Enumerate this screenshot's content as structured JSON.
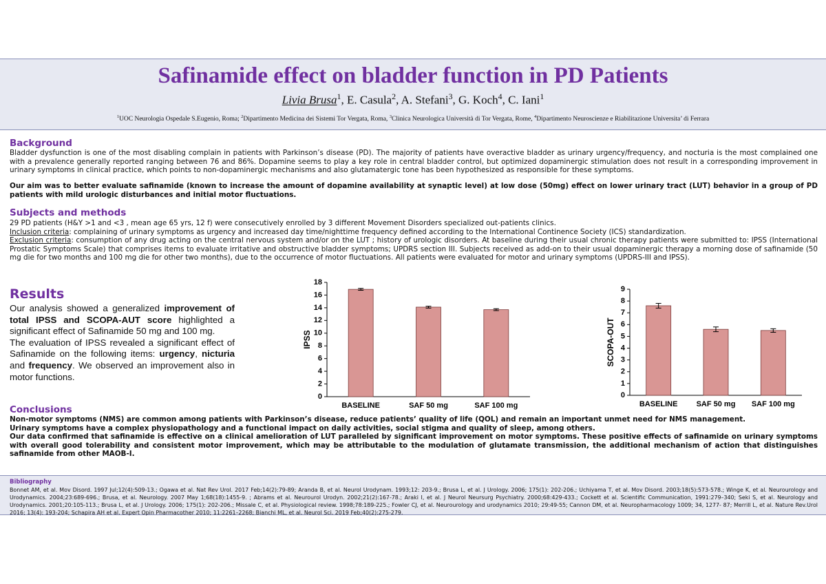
{
  "header": {
    "title": "Safinamide effect on bladder function in PD Patients",
    "authors": [
      {
        "name": "Livia Brusa",
        "sup": "1"
      },
      {
        "name": "E. Casula",
        "sup": "2"
      },
      {
        "name": "A. Stefani",
        "sup": "3"
      },
      {
        "name": "G. Koch",
        "sup": "4"
      },
      {
        "name": "C. Iani",
        "sup": "1"
      }
    ],
    "author_separator": ", ",
    "affiliations": [
      {
        "sup": "1",
        "text": "UOC Neurologia Ospedale S.Eugenio, Roma; "
      },
      {
        "sup": "2",
        "text": "Dipartimento Medicina dei Sistemi Tor Vergata, Roma, "
      },
      {
        "sup": "3",
        "text": "Clinica Neurologica Università di Tor Vergata, Rome, "
      },
      {
        "sup": "4",
        "text": "Dipartimento Neuroscienze e Riabilitazione Universita’ di Ferrara"
      }
    ]
  },
  "background": {
    "heading": "Background",
    "text": "Bladder dysfunction is one of the most disabling complain in patients with Parkinson’s disease (PD). The majority of patients have overactive bladder as urinary urgency/frequency, and nocturia is the most complained one with a prevalence generally reported ranging between 76 and 86%.  Dopamine seems to play a key role in central bladder control, but optimized dopaminergic stimulation does not result in a corresponding improvement in urinary symptoms in clinical practice, which points to non-dopaminergic mechanisms and also glutamatergic tone has been hypothesized as responsible for these symptoms.",
    "aim": "Our aim was to better evaluate safinamide (known to increase the amount of dopamine availability at synaptic level) at low dose (50mg) effect on lower urinary tract (LUT) behavior in a group of PD patients with mild urologic disturbances and initial motor fluctuations."
  },
  "methods": {
    "heading": "Subjects and methods",
    "intro": "29 PD patients (H&Y >1 and <3 , mean age 65 yrs, 12 f) were consecutively enrolled by 3 different Movement Disorders specialized out-patients clinics.",
    "inclusion": {
      "label": "Inclusion criteria",
      "text": ": complaining of urinary symptoms as urgency and increased day time/nighttime frequency defined according to the International  Continence Society (ICS) standardization."
    },
    "exclusion": {
      "label": "Exclusion criteria",
      "text": ": consumption of any drug acting on the central nervous system and/or on the LUT ; history of urologic disorders. At baseline during their usual chronic therapy patients were submitted to: IPSS (International Prostatic Symptoms Scale) that comprises  items to evaluate irritative and obstructive bladder symptoms; UPDRS section III. Subjects received as add-on to their usual dopaminergic therapy a morning dose of safinamide (50 mg die for two months and 100 mg die for other two months), due to the occurrence of motor fluctuations. All patients were evaluated for motor and urinary symptoms (UPDRS-III and IPSS)."
    }
  },
  "results": {
    "heading": "Results",
    "paragraphs": [
      [
        "Our analysis showed a generalized ",
        "improvement of total IPSS and SCOPA-AUT score",
        " highlighted a significant effect of Safinamide 50 mg and 100 mg."
      ],
      [
        "The evaluation of IPSS revealed a significant effect of Safinamide on the following items: ",
        "urgency",
        ", ",
        "nicturia",
        " and ",
        "frequency",
        ". We observed an improvement also in motor functions."
      ]
    ]
  },
  "chart_data": [
    {
      "type": "bar",
      "ylabel": "IPSS",
      "categories": [
        "BASELINE",
        "SAF 50 mg",
        "SAF 100 mg"
      ],
      "values": [
        16.9,
        14.1,
        13.7
      ],
      "errors": [
        0.15,
        0.15,
        0.15
      ],
      "color": "#d99694",
      "ylim": [
        0,
        18
      ],
      "yticks": [
        0,
        2,
        4,
        6,
        8,
        10,
        12,
        14,
        16,
        18
      ]
    },
    {
      "type": "bar",
      "ylabel": "SCOPA-OUT",
      "categories": [
        "BASELINE",
        "SAF 50 mg",
        "SAF 100 mg"
      ],
      "values": [
        7.6,
        5.6,
        5.5
      ],
      "errors": [
        0.2,
        0.2,
        0.15
      ],
      "color": "#d99694",
      "ylim": [
        0,
        9
      ],
      "yticks": [
        0,
        1,
        2,
        3,
        4,
        5,
        6,
        7,
        8,
        9
      ]
    }
  ],
  "conclusions": {
    "heading": "Conclusions",
    "paragraphs": [
      "Non-motor symptoms (NMS) are common among patients with Parkinson’s disease, reduce patients’ quality of life (QOL) and remain an important unmet need for NMS management.",
      "Urinary symptoms have a complex physiopathology and a functional impact on daily activities, social stigma and quality of sleep, among others.",
      "Our data confirmed that safinamide is effective on a clinical amelioration of LUT paralleled by significant  improvement on motor symptoms. These positive effects of  safinamide on urinary symptoms with overall good tolerability and consistent motor improvement, which may be attributable to the modulation of glutamate transmission, the additional mechanism of action that distinguishes safinamide from other MAOB-I."
    ]
  },
  "bibliography": {
    "heading": "Bibliography",
    "text": "Bonnet AM, et al. Mov Disord. 1997 Jul;12(4):509-13.; Ogawa et al. Nat Rev Urol. 2017 Feb;14(2):79-89; Aranda B, et al. Neurol Urodynam. 1993;12: 203-9.; Brusa L, et al. J Urology. 2006; 175(1):  202-206.; Uchiyama T, et al. Mov Disord. 2003;18(5):573-578.; Winge K, et al. Neurourology and Urodynamics. 2004;23:689-696.; Brusa, et al. Neurology. 2007 May 1;68(18):1455-9. ; Abrams et al.  Neurourol Urodyn. 2002;21(2):167-78.; Araki I, et al. J Neurol Neursurg Psychiatry. 2000;68:429-433.; Cockett et al. Scientific Communication,  1991:279–340; Seki S, et al. Neurology and  Urodynamics. 2001;20:105-113.; Brusa L, et al. J Urology. 2006; 175(1): 202-206.; Missale C, et al. Physiological review. 1998;78:189-225.; Fowler CJ, et al. Neurourology and urodynamics 2010;  29:49-55; Cannon DM, et al. Neuropharmacology 1009; 34, 1277- 87; Merrill L, et al. Nature Rev.Urol 2016; 13(4): 193-204; Schapira  AH et al.  Expert Opin Pharmacother 2010; 11:2261–2268;  Bianchi ML, et al. Neurol Sci. 2019 Feb;40(2):275-279."
  }
}
